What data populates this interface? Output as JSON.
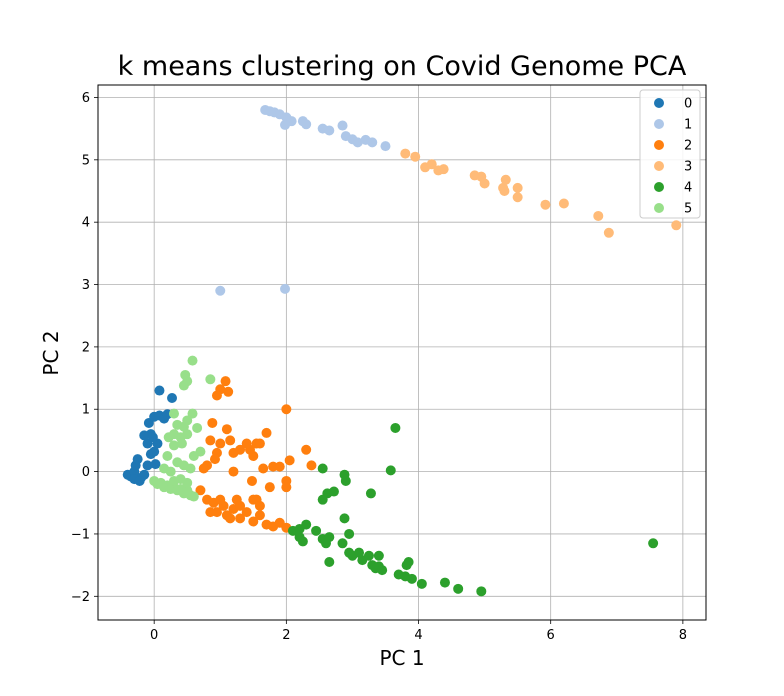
{
  "chart_data": {
    "type": "scatter",
    "title": "k means clustering on Covid Genome PCA",
    "xlabel": "PC 1",
    "ylabel": "PC 2",
    "xlim": [
      -0.85,
      8.35
    ],
    "ylim": [
      -2.38,
      6.2
    ],
    "xticks": [
      0,
      2,
      4,
      6,
      8
    ],
    "yticks": [
      -2,
      -1,
      0,
      1,
      2,
      3,
      4,
      5,
      6
    ],
    "grid": true,
    "legend_position": "top-right",
    "series": [
      {
        "name": "0",
        "color": "#1f77b4",
        "points": [
          [
            -0.4,
            -0.05
          ],
          [
            -0.35,
            -0.08
          ],
          [
            -0.3,
            0.0
          ],
          [
            -0.28,
            0.1
          ],
          [
            -0.25,
            0.2
          ],
          [
            -0.2,
            -0.1
          ],
          [
            -0.15,
            -0.05
          ],
          [
            -0.1,
            0.1
          ],
          [
            -0.05,
            0.28
          ],
          [
            0.0,
            0.32
          ],
          [
            -0.1,
            0.45
          ],
          [
            0.05,
            0.45
          ],
          [
            -0.05,
            0.6
          ],
          [
            -0.15,
            0.58
          ],
          [
            -0.08,
            0.78
          ],
          [
            0.0,
            0.88
          ],
          [
            0.08,
            0.9
          ],
          [
            0.15,
            0.85
          ],
          [
            0.2,
            0.92
          ],
          [
            0.27,
            1.18
          ],
          [
            0.08,
            1.3
          ],
          [
            -0.02,
            0.55
          ],
          [
            0.02,
            0.12
          ],
          [
            -0.3,
            -0.12
          ],
          [
            -0.22,
            -0.15
          ]
        ]
      },
      {
        "name": "1",
        "color": "#aec7e8",
        "points": [
          [
            1.68,
            5.8
          ],
          [
            1.75,
            5.78
          ],
          [
            1.82,
            5.76
          ],
          [
            1.9,
            5.73
          ],
          [
            2.0,
            5.68
          ],
          [
            2.08,
            5.62
          ],
          [
            2.25,
            5.62
          ],
          [
            2.3,
            5.57
          ],
          [
            2.55,
            5.5
          ],
          [
            2.65,
            5.47
          ],
          [
            2.85,
            5.55
          ],
          [
            2.9,
            5.38
          ],
          [
            3.0,
            5.33
          ],
          [
            3.08,
            5.28
          ],
          [
            3.2,
            5.32
          ],
          [
            3.3,
            5.28
          ],
          [
            3.5,
            5.22
          ],
          [
            1.98,
            5.56
          ],
          [
            1.0,
            2.9
          ],
          [
            1.98,
            2.93
          ]
        ]
      },
      {
        "name": "2",
        "color": "#ff7f0e",
        "points": [
          [
            0.7,
            -0.3
          ],
          [
            0.8,
            -0.45
          ],
          [
            0.9,
            -0.5
          ],
          [
            0.95,
            -0.65
          ],
          [
            1.05,
            -0.55
          ],
          [
            1.1,
            -0.7
          ],
          [
            1.2,
            -0.6
          ],
          [
            1.3,
            -0.75
          ],
          [
            1.4,
            -0.65
          ],
          [
            1.5,
            -0.8
          ],
          [
            1.6,
            -0.7
          ],
          [
            1.7,
            -0.85
          ],
          [
            1.8,
            -0.88
          ],
          [
            1.9,
            -0.82
          ],
          [
            2.0,
            -0.9
          ],
          [
            1.25,
            -0.45
          ],
          [
            1.55,
            -0.45
          ],
          [
            1.75,
            -0.25
          ],
          [
            2.0,
            -0.25
          ],
          [
            2.0,
            -0.15
          ],
          [
            1.8,
            0.08
          ],
          [
            1.9,
            0.08
          ],
          [
            1.65,
            0.05
          ],
          [
            1.5,
            0.25
          ],
          [
            1.45,
            0.35
          ],
          [
            1.55,
            0.45
          ],
          [
            1.4,
            0.45
          ],
          [
            1.3,
            0.35
          ],
          [
            1.2,
            0.3
          ],
          [
            1.15,
            0.5
          ],
          [
            1.0,
            0.45
          ],
          [
            0.85,
            0.5
          ],
          [
            0.95,
            0.3
          ],
          [
            0.92,
            0.2
          ],
          [
            0.8,
            0.1
          ],
          [
            0.75,
            0.05
          ],
          [
            1.1,
            0.68
          ],
          [
            0.88,
            0.78
          ],
          [
            1.7,
            0.62
          ],
          [
            1.08,
            1.45
          ],
          [
            1.0,
            1.32
          ],
          [
            1.12,
            1.28
          ],
          [
            0.95,
            1.22
          ],
          [
            1.48,
            -0.15
          ],
          [
            2.05,
            0.18
          ],
          [
            2.3,
            0.35
          ],
          [
            2.38,
            0.1
          ],
          [
            2.0,
            1.0
          ],
          [
            1.6,
            0.45
          ],
          [
            1.3,
            -0.55
          ],
          [
            1.15,
            -0.75
          ],
          [
            1.6,
            -0.55
          ],
          [
            0.85,
            -0.65
          ],
          [
            1.0,
            -0.45
          ],
          [
            1.5,
            -0.45
          ],
          [
            1.2,
            0.0
          ]
        ]
      },
      {
        "name": "3",
        "color": "#ffbb78",
        "points": [
          [
            3.8,
            5.1
          ],
          [
            3.95,
            5.05
          ],
          [
            4.1,
            4.88
          ],
          [
            4.2,
            4.93
          ],
          [
            4.3,
            4.83
          ],
          [
            4.38,
            4.85
          ],
          [
            4.85,
            4.75
          ],
          [
            4.95,
            4.73
          ],
          [
            5.0,
            4.62
          ],
          [
            5.28,
            4.55
          ],
          [
            5.32,
            4.68
          ],
          [
            5.3,
            4.5
          ],
          [
            5.5,
            4.55
          ],
          [
            5.5,
            4.4
          ],
          [
            5.92,
            4.28
          ],
          [
            6.2,
            4.3
          ],
          [
            6.72,
            4.1
          ],
          [
            6.88,
            3.83
          ],
          [
            7.9,
            3.95
          ]
        ]
      },
      {
        "name": "4",
        "color": "#2ca02c",
        "points": [
          [
            2.3,
            -0.85
          ],
          [
            2.2,
            -0.92
          ],
          [
            2.1,
            -0.95
          ],
          [
            2.2,
            -1.05
          ],
          [
            2.25,
            -1.12
          ],
          [
            2.45,
            -0.95
          ],
          [
            2.55,
            -1.08
          ],
          [
            2.65,
            -1.05
          ],
          [
            2.6,
            -1.15
          ],
          [
            2.55,
            -0.45
          ],
          [
            2.62,
            -0.35
          ],
          [
            2.72,
            -0.32
          ],
          [
            2.55,
            0.05
          ],
          [
            2.88,
            -0.05
          ],
          [
            2.9,
            -0.15
          ],
          [
            2.88,
            -0.75
          ],
          [
            2.85,
            -1.15
          ],
          [
            2.95,
            -1.0
          ],
          [
            2.95,
            -1.3
          ],
          [
            3.0,
            -1.35
          ],
          [
            3.1,
            -1.3
          ],
          [
            3.15,
            -1.42
          ],
          [
            3.25,
            -1.35
          ],
          [
            3.3,
            -1.5
          ],
          [
            3.35,
            -1.55
          ],
          [
            3.4,
            -1.52
          ],
          [
            3.45,
            -1.58
          ],
          [
            3.28,
            -0.35
          ],
          [
            3.58,
            0.02
          ],
          [
            3.65,
            0.7
          ],
          [
            3.7,
            -1.65
          ],
          [
            3.8,
            -1.68
          ],
          [
            3.82,
            -1.5
          ],
          [
            3.85,
            -1.45
          ],
          [
            3.9,
            -1.72
          ],
          [
            4.05,
            -1.8
          ],
          [
            4.4,
            -1.78
          ],
          [
            4.6,
            -1.88
          ],
          [
            4.95,
            -1.92
          ],
          [
            7.55,
            -1.15
          ],
          [
            2.65,
            -1.45
          ],
          [
            3.4,
            -1.35
          ]
        ]
      },
      {
        "name": "5",
        "color": "#98df8a",
        "points": [
          [
            0.0,
            -0.15
          ],
          [
            0.05,
            -0.2
          ],
          [
            0.1,
            -0.18
          ],
          [
            0.15,
            -0.25
          ],
          [
            0.2,
            -0.22
          ],
          [
            0.25,
            -0.28
          ],
          [
            0.3,
            -0.25
          ],
          [
            0.35,
            -0.3
          ],
          [
            0.4,
            -0.28
          ],
          [
            0.45,
            -0.35
          ],
          [
            0.5,
            -0.3
          ],
          [
            0.55,
            -0.38
          ],
          [
            0.6,
            -0.4
          ],
          [
            0.3,
            -0.15
          ],
          [
            0.4,
            -0.12
          ],
          [
            0.5,
            -0.18
          ],
          [
            0.35,
            0.15
          ],
          [
            0.45,
            0.1
          ],
          [
            0.2,
            0.25
          ],
          [
            0.6,
            0.25
          ],
          [
            0.7,
            0.32
          ],
          [
            0.3,
            0.42
          ],
          [
            0.4,
            0.55
          ],
          [
            0.5,
            0.6
          ],
          [
            0.3,
            0.6
          ],
          [
            0.35,
            0.75
          ],
          [
            0.45,
            0.72
          ],
          [
            0.5,
            0.82
          ],
          [
            0.58,
            0.93
          ],
          [
            0.3,
            0.93
          ],
          [
            0.65,
            0.7
          ],
          [
            0.45,
            1.38
          ],
          [
            0.5,
            1.45
          ],
          [
            0.47,
            1.55
          ],
          [
            0.58,
            1.78
          ],
          [
            0.85,
            1.48
          ],
          [
            0.42,
            0.45
          ],
          [
            0.25,
            0.0
          ],
          [
            0.15,
            0.05
          ],
          [
            0.55,
            0.05
          ],
          [
            0.22,
            0.55
          ]
        ]
      }
    ]
  }
}
